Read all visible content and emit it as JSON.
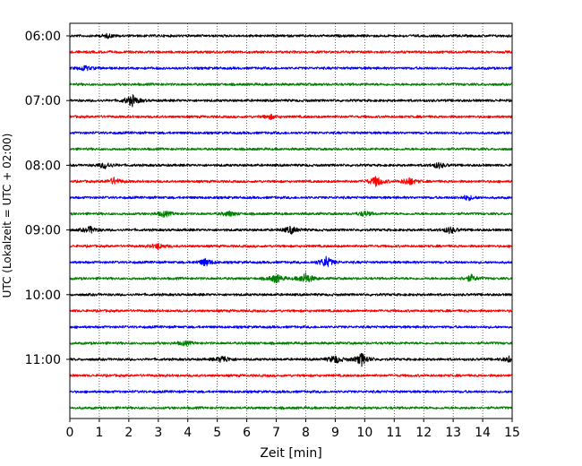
{
  "chart_data": {
    "type": "line",
    "title": "",
    "xlabel": "Zeit  [min]",
    "ylabel": "UTC (Lokalzeit = UTC + 02:00)",
    "xlim": [
      0,
      15
    ],
    "x_ticks": [
      0,
      1,
      2,
      3,
      4,
      5,
      6,
      7,
      8,
      9,
      10,
      11,
      12,
      13,
      14,
      15
    ],
    "y_tick_labels": [
      "06:00",
      "07:00",
      "08:00",
      "09:00",
      "10:00",
      "11:00"
    ],
    "y_tick_rows": [
      0,
      4,
      8,
      12,
      16,
      20
    ],
    "grid": "vertical-dotted",
    "trace_color_cycle": [
      "#000000",
      "#ff0000",
      "#0000ff",
      "#008000"
    ],
    "row_start_times": [
      "06:00",
      "06:15",
      "06:30",
      "06:45",
      "07:00",
      "07:15",
      "07:30",
      "07:45",
      "08:00",
      "08:15",
      "08:30",
      "08:45",
      "09:00",
      "09:15",
      "09:30",
      "09:45",
      "10:00",
      "10:15",
      "10:30",
      "10:45",
      "11:00",
      "11:15",
      "11:30",
      "11:45"
    ],
    "events": [
      {
        "row": 0,
        "minute": 1.3,
        "amp": 0.4
      },
      {
        "row": 2,
        "minute": 0.5,
        "amp": 0.6
      },
      {
        "row": 4,
        "minute": 2.1,
        "amp": 1.4
      },
      {
        "row": 5,
        "minute": 6.8,
        "amp": 0.5
      },
      {
        "row": 8,
        "minute": 1.2,
        "amp": 0.8
      },
      {
        "row": 8,
        "minute": 12.5,
        "amp": 0.7
      },
      {
        "row": 9,
        "minute": 1.5,
        "amp": 0.8
      },
      {
        "row": 9,
        "minute": 10.4,
        "amp": 1.3
      },
      {
        "row": 9,
        "minute": 11.5,
        "amp": 1.0
      },
      {
        "row": 10,
        "minute": 13.5,
        "amp": 0.6
      },
      {
        "row": 11,
        "minute": 3.2,
        "amp": 0.7
      },
      {
        "row": 11,
        "minute": 5.4,
        "amp": 0.6
      },
      {
        "row": 11,
        "minute": 10.0,
        "amp": 0.6
      },
      {
        "row": 12,
        "minute": 0.7,
        "amp": 0.8
      },
      {
        "row": 12,
        "minute": 7.5,
        "amp": 0.9
      },
      {
        "row": 12,
        "minute": 12.9,
        "amp": 0.8
      },
      {
        "row": 13,
        "minute": 3.0,
        "amp": 0.7
      },
      {
        "row": 14,
        "minute": 4.6,
        "amp": 0.9
      },
      {
        "row": 14,
        "minute": 8.7,
        "amp": 1.4
      },
      {
        "row": 15,
        "minute": 7.0,
        "amp": 1.1
      },
      {
        "row": 15,
        "minute": 8.0,
        "amp": 1.4
      },
      {
        "row": 15,
        "minute": 13.6,
        "amp": 0.8
      },
      {
        "row": 19,
        "minute": 3.9,
        "amp": 0.5
      },
      {
        "row": 20,
        "minute": 5.2,
        "amp": 0.9
      },
      {
        "row": 20,
        "minute": 9.0,
        "amp": 1.0
      },
      {
        "row": 20,
        "minute": 9.9,
        "amp": 1.5
      },
      {
        "row": 20,
        "minute": 14.9,
        "amp": 0.6
      }
    ]
  }
}
